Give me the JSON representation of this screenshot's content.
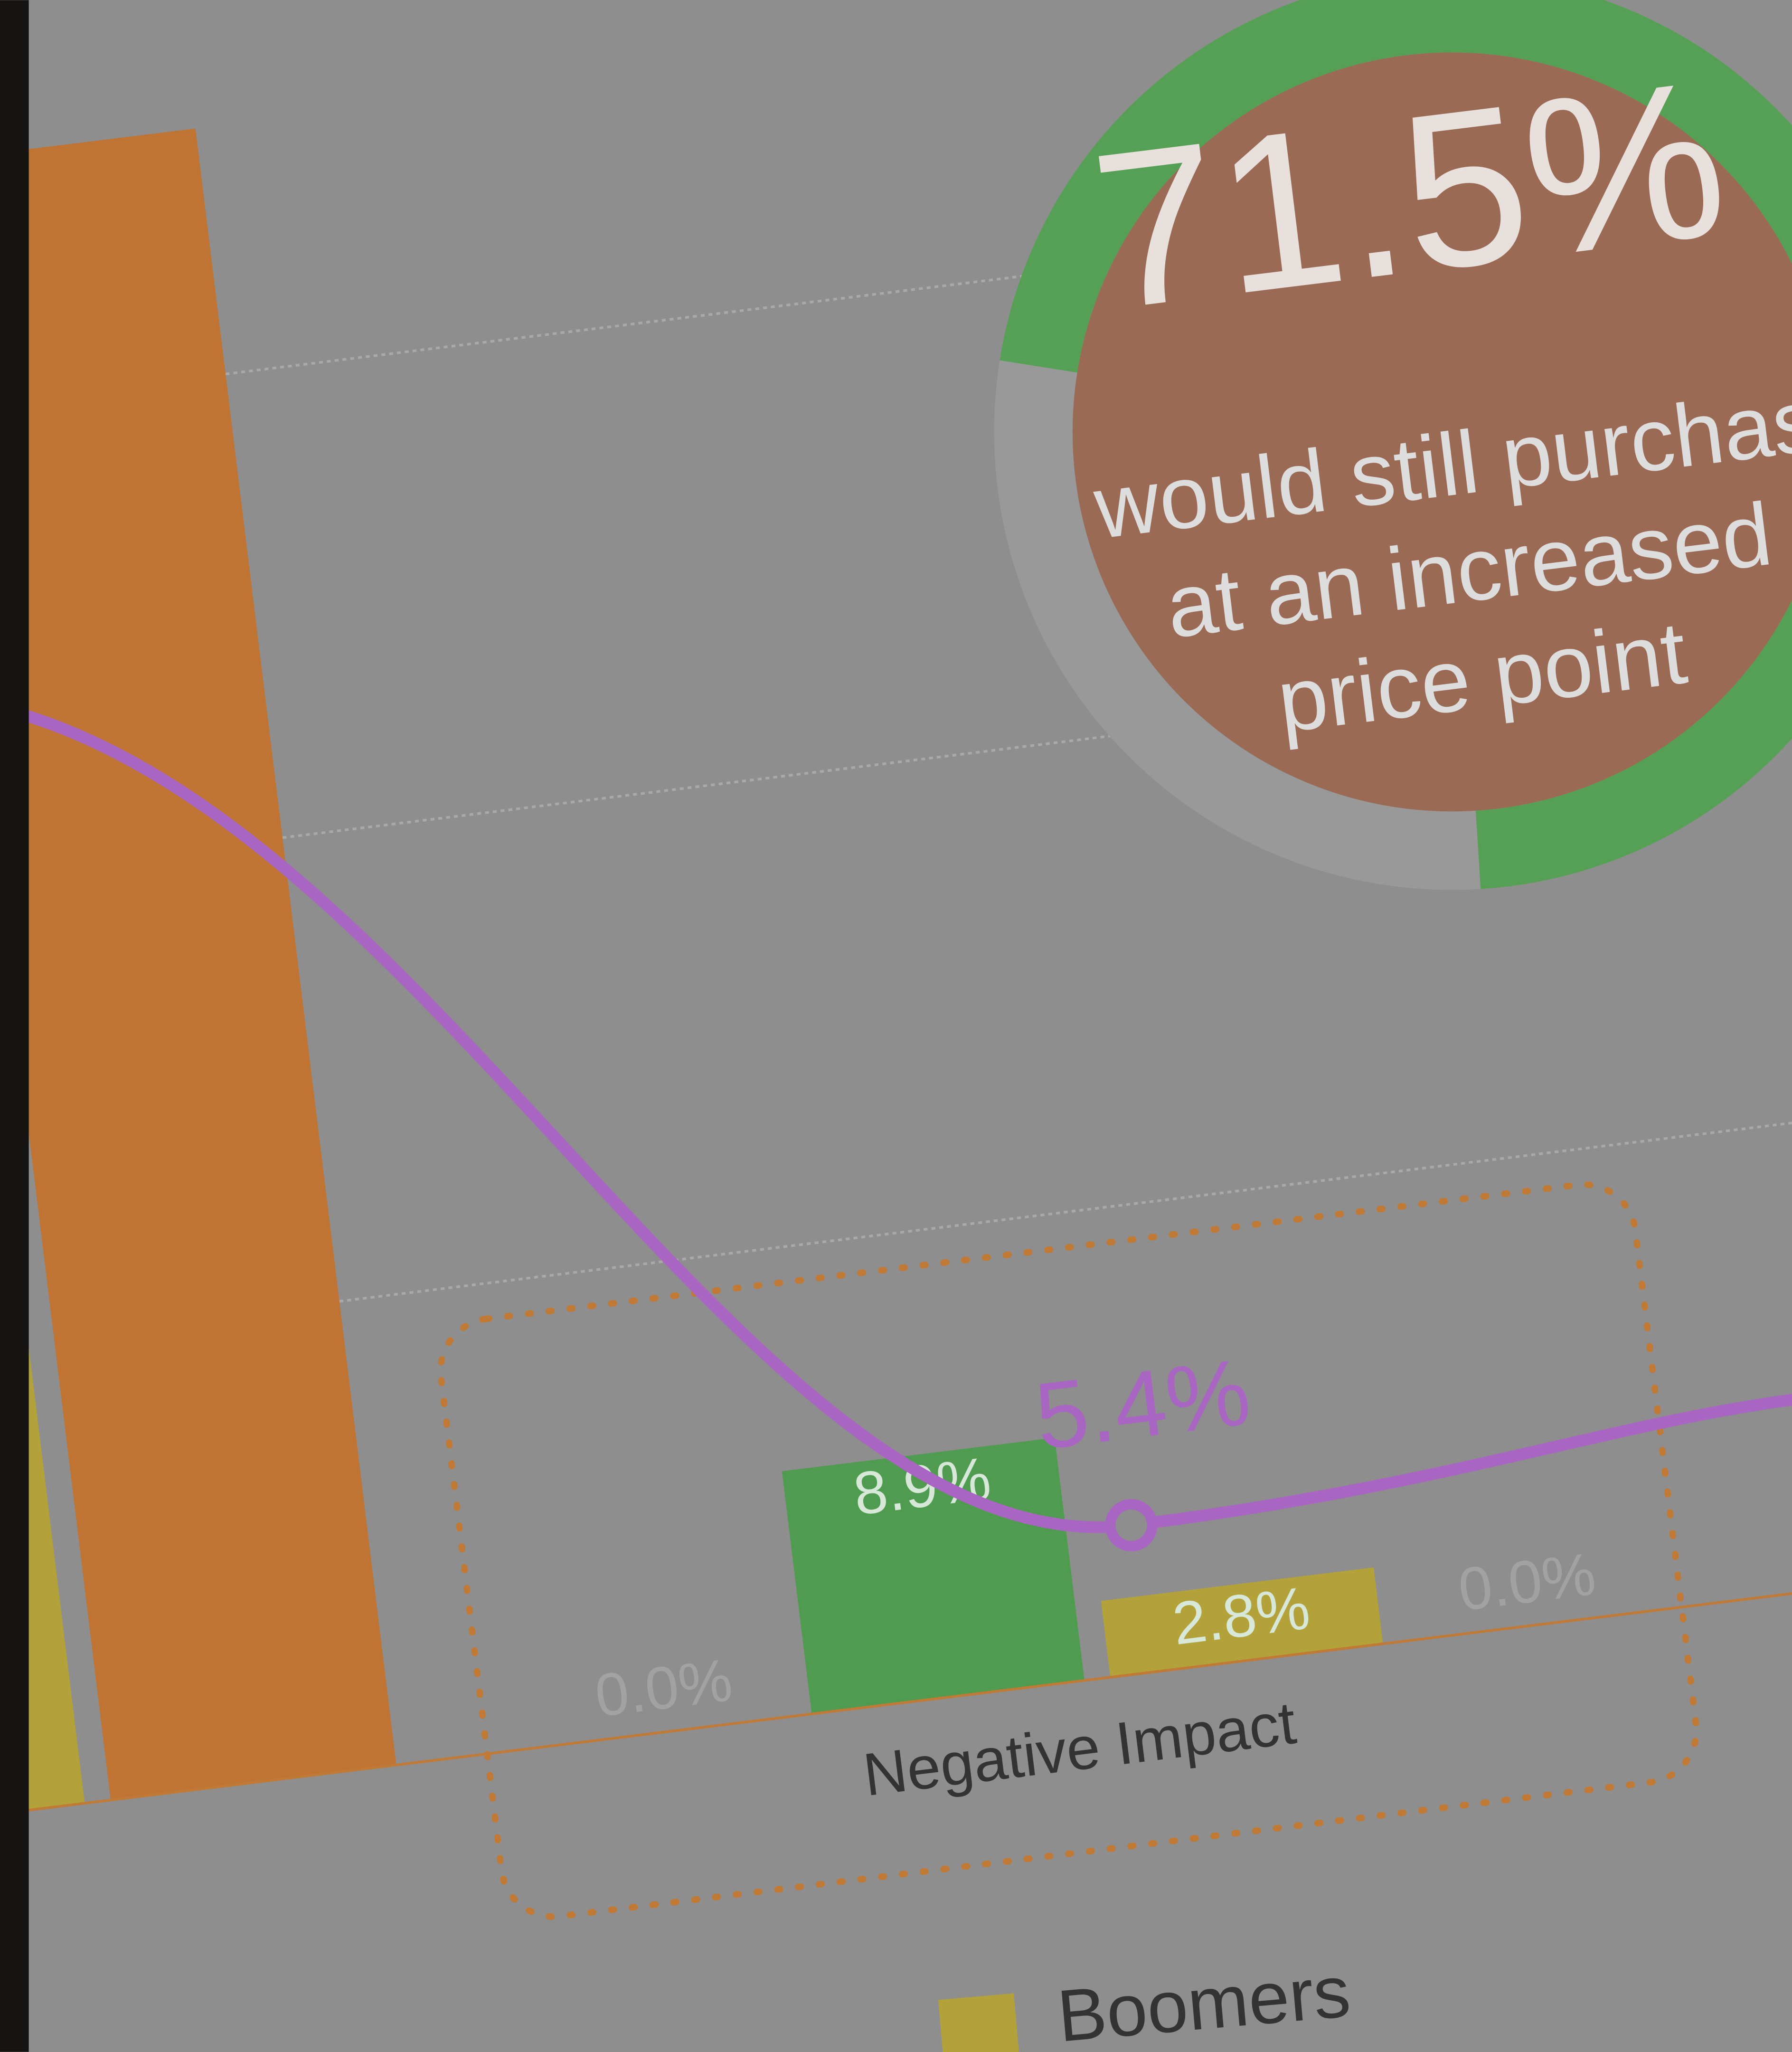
{
  "chart_data": {
    "type": "bar",
    "yticks": [
      17,
      34,
      51
    ],
    "grid": true,
    "annotation": "0.0%",
    "groups": [
      {
        "label": null,
        "bars": [
          {
            "color": "#b3a23a",
            "value": 70
          },
          {
            "color": "#bf7433",
            "value": 60
          }
        ]
      },
      {
        "label": "Negative Impact",
        "bars": [
          {
            "color": "#9a9a9a",
            "value": 0.0,
            "value_label": "0.0%"
          },
          {
            "color": "#4f9b4f",
            "value": 8.9,
            "value_label": "8.9%"
          },
          {
            "color": "#b3a23a",
            "value": 2.8,
            "value_label": "2.8%"
          },
          {
            "color": "#9a9a9a",
            "value": 0.0,
            "value_label": "0.0%"
          }
        ]
      }
    ],
    "line": {
      "color": "#a866c2",
      "values": [
        41,
        5.4,
        7
      ],
      "highlight": 1,
      "value_label": "5.4%"
    },
    "callout": {
      "value": 71.5,
      "value_label": "71.5%",
      "color": "#55a055",
      "lines": [
        "would still purchas",
        "at an increased",
        "price point"
      ]
    },
    "legend": [
      {
        "name": "Boomers",
        "color": "#b3a23a"
      }
    ]
  }
}
